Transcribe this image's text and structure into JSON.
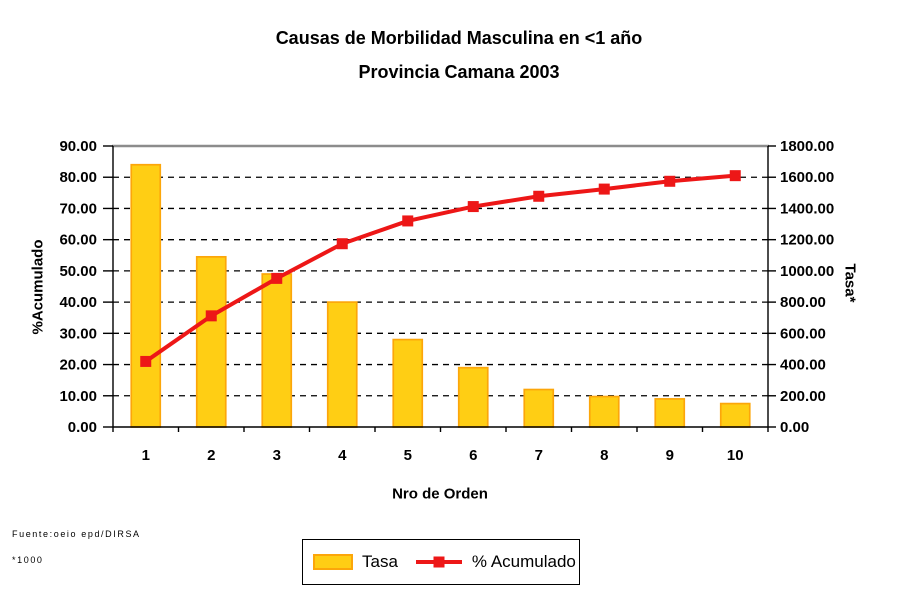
{
  "colors": {
    "bar_fill": "#FFCE14",
    "bar_border": "#FCA60A",
    "line_color": "#ED1717",
    "grid_color": "#000000",
    "axis_color": "#000000",
    "plot_top_border": "#8C8C8C",
    "background": "#FFFFFF"
  },
  "source": {
    "line1": "Fuente:oeio epd/DIRSA",
    "line2": "*1000"
  },
  "chart_data": {
    "type": "bar+line (pareto)",
    "title": {
      "line1": "Causas de Morbilidad Masculina en <1 año",
      "line2": "Provincia Camana 2003"
    },
    "xlabel": "Nro de Orden",
    "categories": [
      "1",
      "2",
      "3",
      "4",
      "5",
      "6",
      "7",
      "8",
      "9",
      "10"
    ],
    "series": [
      {
        "name": "Tasa",
        "type": "bar",
        "axis": "right",
        "values": [
          1680,
          1090,
          980,
          800,
          560,
          380,
          240,
          195,
          180,
          150
        ]
      },
      {
        "name": "% Acumulado",
        "type": "line",
        "axis": "left",
        "values": [
          21.0,
          35.6,
          47.6,
          58.7,
          66.0,
          70.6,
          73.9,
          76.2,
          78.7,
          80.5
        ]
      }
    ],
    "left_axis": {
      "label": "%Acumulado",
      "min": 0,
      "max": 90,
      "ticks": [
        "0.00",
        "10.00",
        "20.00",
        "30.00",
        "40.00",
        "50.00",
        "60.00",
        "70.00",
        "80.00",
        "90.00"
      ]
    },
    "right_axis": {
      "label": "Tasa*",
      "min": 0,
      "max": 1800,
      "ticks": [
        "0.00",
        "200.00",
        "400.00",
        "600.00",
        "800.00",
        "1000.00",
        "1200.00",
        "1400.00",
        "1600.00",
        "1800.00"
      ]
    },
    "grid": "horizontal dashed",
    "legend_position": "bottom"
  }
}
